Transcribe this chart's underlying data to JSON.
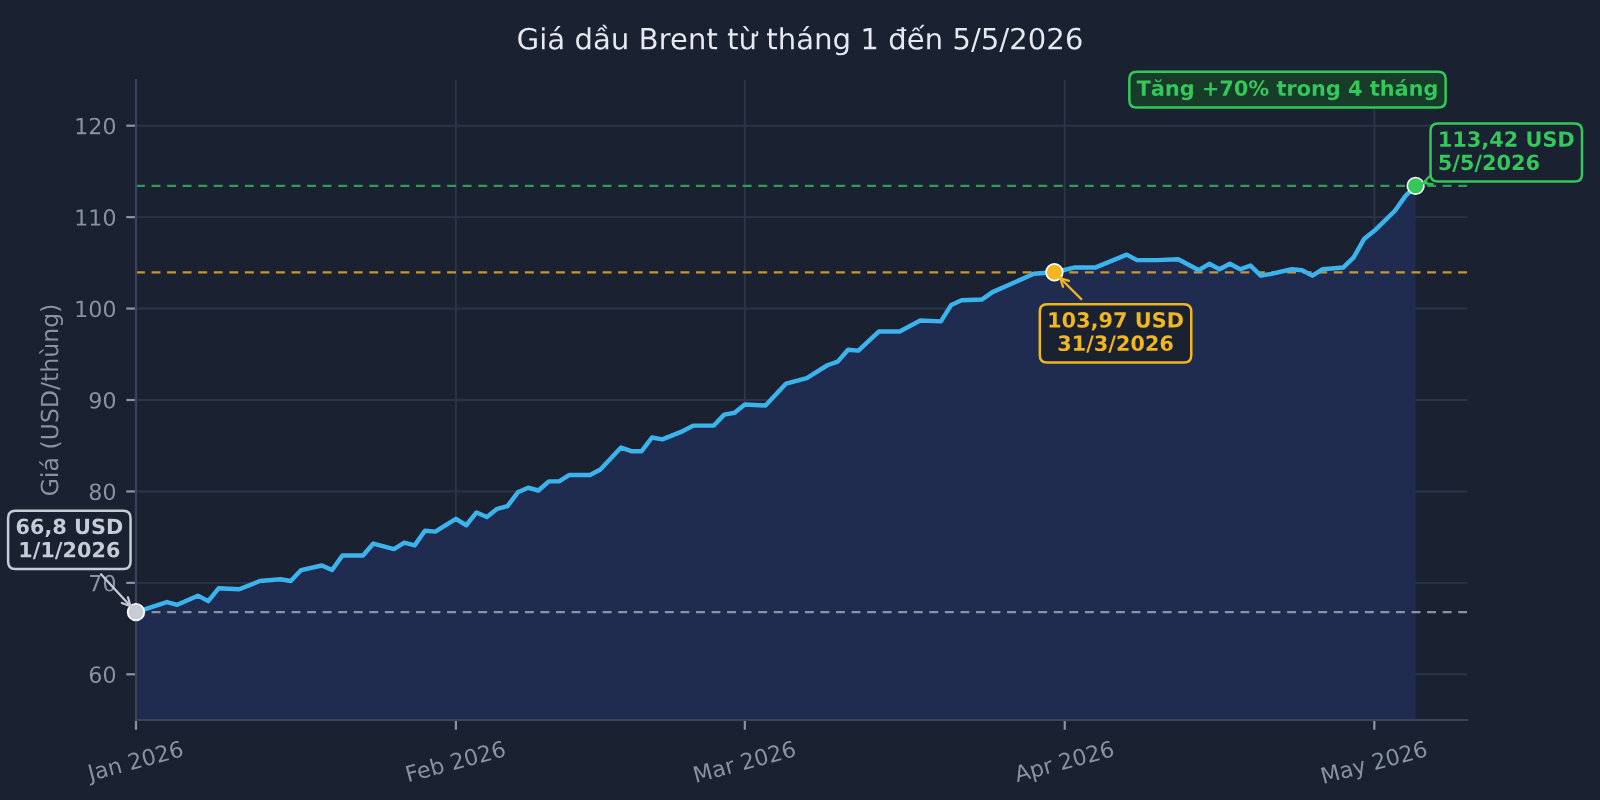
{
  "chart_data": {
    "type": "area",
    "title": "Giá dầu Brent từ tháng 1 đến 5/5/2026",
    "ylabel": "Giá (USD/thùng)",
    "xlim": [
      "2026-01-01",
      "2026-05-10"
    ],
    "xticks": [
      {
        "value": "2026-01-01",
        "label": "Jan 2026"
      },
      {
        "value": "2026-02-01",
        "label": "Feb 2026"
      },
      {
        "value": "2026-03-01",
        "label": "Mar 2026"
      },
      {
        "value": "2026-04-01",
        "label": "Apr 2026"
      },
      {
        "value": "2026-05-01",
        "label": "May 2026"
      }
    ],
    "ylim": [
      55,
      125
    ],
    "yticks": [
      60,
      70,
      80,
      90,
      100,
      110,
      120
    ],
    "grid": true,
    "legend": false,
    "series": [
      {
        "color": "#3bb4ee",
        "x": [
          "2026-01-01",
          "2026-01-04",
          "2026-01-05",
          "2026-01-07",
          "2026-01-08",
          "2026-01-09",
          "2026-01-11",
          "2026-01-13",
          "2026-01-15",
          "2026-01-16",
          "2026-01-17",
          "2026-01-19",
          "2026-01-20",
          "2026-01-21",
          "2026-01-23",
          "2026-01-24",
          "2026-01-26",
          "2026-01-27",
          "2026-01-28",
          "2026-01-29",
          "2026-01-30",
          "2026-02-01",
          "2026-02-02",
          "2026-02-03",
          "2026-02-04",
          "2026-02-05",
          "2026-02-06",
          "2026-02-07",
          "2026-02-08",
          "2026-02-09",
          "2026-02-10",
          "2026-02-11",
          "2026-02-12",
          "2026-02-14",
          "2026-02-15",
          "2026-02-17",
          "2026-02-18",
          "2026-02-19",
          "2026-02-20",
          "2026-02-21",
          "2026-02-23",
          "2026-02-24",
          "2026-02-26",
          "2026-02-27",
          "2026-02-28",
          "2026-03-01",
          "2026-03-03",
          "2026-03-04",
          "2026-03-05",
          "2026-03-07",
          "2026-03-09",
          "2026-03-10",
          "2026-03-11",
          "2026-03-12",
          "2026-03-14",
          "2026-03-16",
          "2026-03-18",
          "2026-03-20",
          "2026-03-21",
          "2026-03-22",
          "2026-03-24",
          "2026-03-25",
          "2026-03-27",
          "2026-03-29",
          "2026-03-31",
          "2026-04-02",
          "2026-04-04",
          "2026-04-07",
          "2026-04-08",
          "2026-04-10",
          "2026-04-12",
          "2026-04-14",
          "2026-04-15",
          "2026-04-16",
          "2026-04-17",
          "2026-04-18",
          "2026-04-19",
          "2026-04-20",
          "2026-04-21",
          "2026-04-23",
          "2026-04-24",
          "2026-04-25",
          "2026-04-26",
          "2026-04-28",
          "2026-04-29",
          "2026-04-30",
          "2026-05-01",
          "2026-05-03",
          "2026-05-04",
          "2026-05-05"
        ],
        "values": [
          66.8,
          67.9,
          67.6,
          68.6,
          68.0,
          69.4,
          69.3,
          70.2,
          70.4,
          70.2,
          71.4,
          71.9,
          71.4,
          73.0,
          73.0,
          74.3,
          73.7,
          74.4,
          74.1,
          75.7,
          75.6,
          77.0,
          76.3,
          77.7,
          77.2,
          78.1,
          78.4,
          79.9,
          80.4,
          80.1,
          81.1,
          81.1,
          81.8,
          81.8,
          82.4,
          84.8,
          84.4,
          84.4,
          85.9,
          85.7,
          86.6,
          87.2,
          87.2,
          88.4,
          88.6,
          89.5,
          89.4,
          90.6,
          91.8,
          92.4,
          93.8,
          94.2,
          95.5,
          95.4,
          97.5,
          97.5,
          98.7,
          98.6,
          100.4,
          100.9,
          101.0,
          101.8,
          102.8,
          103.8,
          103.97,
          104.5,
          104.5,
          105.9,
          105.3,
          105.3,
          105.4,
          104.2,
          104.9,
          104.3,
          104.9,
          104.3,
          104.7,
          103.6,
          103.8,
          104.3,
          104.2,
          103.6,
          104.3,
          104.5,
          105.6,
          107.6,
          108.5,
          110.7,
          112.3,
          113.42
        ]
      },
      {
        "type": "scatter",
        "x": [
          "2026-01-01",
          "2026-03-31",
          "2026-05-05"
        ],
        "values": [
          66.8,
          103.97,
          113.42
        ],
        "colors": [
          "#c8ccd4",
          "#f2b61f",
          "#34c759"
        ]
      }
    ],
    "ref_lines": [
      {
        "axis": "y",
        "value": 66.8,
        "color": "#8a93a3",
        "line_style": "dashed"
      },
      {
        "axis": "y",
        "value": 103.97,
        "color": "#c9962a",
        "line_style": "dashed"
      },
      {
        "axis": "y",
        "value": 113.42,
        "color": "#2f9d55",
        "line_style": "dashed"
      }
    ],
    "annotations": [
      {
        "text": "66,8 USD\n1/1/2026",
        "x": "2026-01-01",
        "y": 66.8
      },
      {
        "text": "103,97 USD\n31/3/2026",
        "x": "2026-03-31",
        "y": 103.97
      },
      {
        "text": "113,42 USD\n5/5/2026",
        "x": "2026-05-05",
        "y": 113.42
      },
      "Tăng +70% trong 4 tháng"
    ]
  }
}
